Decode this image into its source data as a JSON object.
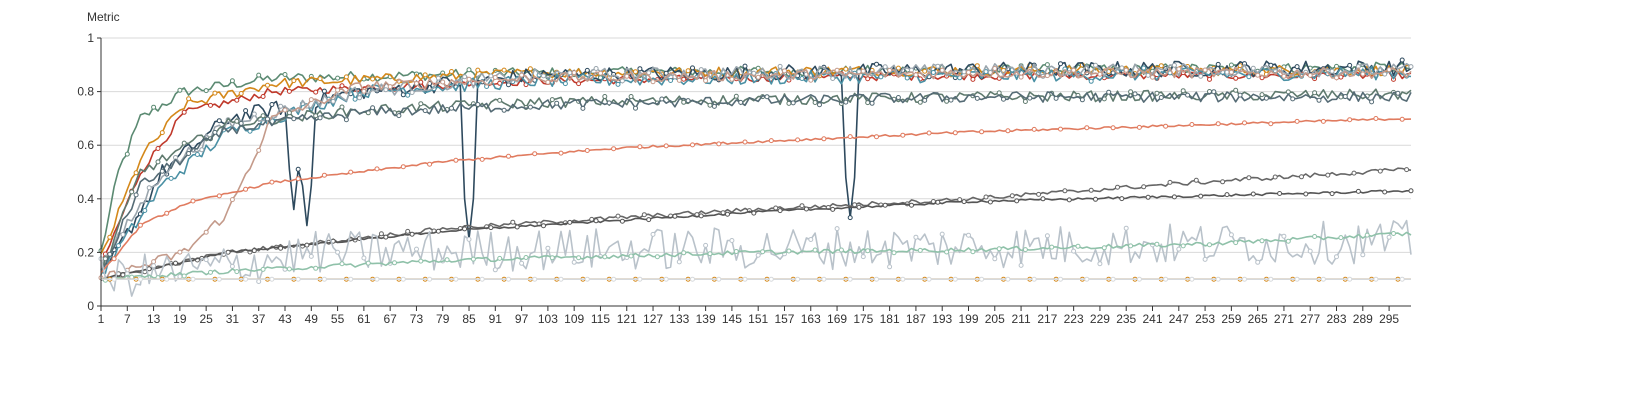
{
  "chart_data": {
    "type": "line",
    "ylabel": "Metric",
    "xlabel": "",
    "xlim": [
      1,
      300
    ],
    "ylim": [
      0,
      1
    ],
    "y_ticks": [
      "0",
      "0.2",
      "0.4",
      "0.6",
      "0.8",
      "1"
    ],
    "x_tick_step": 6,
    "grid": "horizontal",
    "legend": "none",
    "series": [
      {
        "color": "#5b8a72",
        "p": [
          [
            1,
            0.2
          ],
          [
            5,
            0.5
          ],
          [
            10,
            0.7
          ],
          [
            20,
            0.8
          ],
          [
            40,
            0.85
          ],
          [
            100,
            0.87
          ],
          [
            200,
            0.88
          ],
          [
            300,
            0.89
          ]
        ],
        "noise": 0.02
      },
      {
        "color": "#c0392b",
        "p": [
          [
            1,
            0.15
          ],
          [
            10,
            0.5
          ],
          [
            20,
            0.72
          ],
          [
            40,
            0.8
          ],
          [
            100,
            0.84
          ],
          [
            200,
            0.86
          ],
          [
            300,
            0.86
          ]
        ],
        "noise": 0.015
      },
      {
        "color": "#d4881a",
        "p": [
          [
            1,
            0.18
          ],
          [
            10,
            0.55
          ],
          [
            20,
            0.75
          ],
          [
            40,
            0.83
          ],
          [
            100,
            0.87
          ],
          [
            200,
            0.88
          ],
          [
            300,
            0.88
          ]
        ],
        "noise": 0.02
      },
      {
        "color": "#2e4a5e",
        "p": [
          [
            1,
            0.1
          ],
          [
            15,
            0.5
          ],
          [
            30,
            0.7
          ],
          [
            60,
            0.8
          ],
          [
            100,
            0.86
          ],
          [
            200,
            0.88
          ],
          [
            300,
            0.89
          ]
        ],
        "noise": 0.03,
        "dips": [
          [
            45,
            0.36
          ],
          [
            48,
            0.3
          ],
          [
            85,
            0.25
          ],
          [
            172,
            0.33
          ]
        ]
      },
      {
        "color": "#4a90a4",
        "p": [
          [
            1,
            0.12
          ],
          [
            15,
            0.45
          ],
          [
            30,
            0.65
          ],
          [
            60,
            0.8
          ],
          [
            100,
            0.84
          ],
          [
            200,
            0.86
          ],
          [
            300,
            0.87
          ]
        ],
        "noise": 0.025
      },
      {
        "color": "#9aa5ad",
        "p": [
          [
            1,
            0.15
          ],
          [
            15,
            0.5
          ],
          [
            30,
            0.68
          ],
          [
            60,
            0.8
          ],
          [
            100,
            0.86
          ],
          [
            200,
            0.88
          ],
          [
            300,
            0.88
          ]
        ],
        "noise": 0.025
      },
      {
        "color": "#c49a8a",
        "p": [
          [
            1,
            0.1
          ],
          [
            20,
            0.2
          ],
          [
            30,
            0.35
          ],
          [
            40,
            0.7
          ],
          [
            60,
            0.82
          ],
          [
            100,
            0.85
          ],
          [
            200,
            0.87
          ],
          [
            300,
            0.87
          ]
        ],
        "noise": 0.02
      },
      {
        "color": "#5f7a6e",
        "p": [
          [
            1,
            0.12
          ],
          [
            10,
            0.5
          ],
          [
            30,
            0.68
          ],
          [
            60,
            0.73
          ],
          [
            100,
            0.76
          ],
          [
            200,
            0.78
          ],
          [
            300,
            0.79
          ]
        ],
        "noise": 0.02
      },
      {
        "color": "#556b75",
        "p": [
          [
            1,
            0.12
          ],
          [
            10,
            0.45
          ],
          [
            30,
            0.66
          ],
          [
            60,
            0.72
          ],
          [
            100,
            0.75
          ],
          [
            200,
            0.78
          ],
          [
            300,
            0.78
          ]
        ],
        "noise": 0.02
      },
      {
        "color": "#e07b5f",
        "p": [
          [
            1,
            0.12
          ],
          [
            10,
            0.3
          ],
          [
            20,
            0.38
          ],
          [
            40,
            0.46
          ],
          [
            80,
            0.54
          ],
          [
            120,
            0.59
          ],
          [
            200,
            0.65
          ],
          [
            300,
            0.7
          ]
        ],
        "noise": 0.004
      },
      {
        "color": "#666666",
        "p": [
          [
            1,
            0.1
          ],
          [
            30,
            0.2
          ],
          [
            80,
            0.29
          ],
          [
            150,
            0.36
          ],
          [
            200,
            0.4
          ],
          [
            250,
            0.46
          ],
          [
            300,
            0.51
          ]
        ],
        "noise": 0.008
      },
      {
        "color": "#555555",
        "p": [
          [
            1,
            0.1
          ],
          [
            30,
            0.2
          ],
          [
            80,
            0.28
          ],
          [
            150,
            0.35
          ],
          [
            200,
            0.39
          ],
          [
            250,
            0.41
          ],
          [
            300,
            0.43
          ]
        ],
        "noise": 0.004
      },
      {
        "color": "#b9c2ca",
        "p": [
          [
            1,
            0.1
          ],
          [
            30,
            0.15
          ],
          [
            50,
            0.2
          ],
          [
            100,
            0.21
          ],
          [
            200,
            0.22
          ],
          [
            300,
            0.24
          ]
        ],
        "noise": 0.08
      },
      {
        "color": "#8fc1a9",
        "p": [
          [
            1,
            0.1
          ],
          [
            30,
            0.13
          ],
          [
            80,
            0.17
          ],
          [
            150,
            0.2
          ],
          [
            200,
            0.21
          ],
          [
            250,
            0.23
          ],
          [
            300,
            0.27
          ]
        ],
        "noise": 0.008
      },
      {
        "color": "#d4881a",
        "p": [
          [
            1,
            0.1
          ],
          [
            300,
            0.1
          ]
        ],
        "noise": 0
      },
      {
        "color": "#d6d9dc",
        "p": [
          [
            1,
            0.1
          ],
          [
            300,
            0.1
          ]
        ],
        "noise": 0
      }
    ]
  }
}
